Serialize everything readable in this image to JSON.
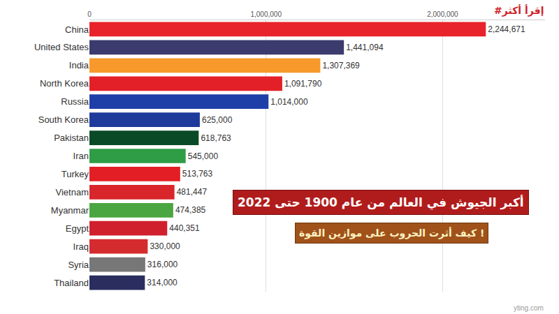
{
  "chart_data": {
    "type": "bar",
    "orientation": "horizontal",
    "title": "أكبر الجيوش في العالم من عام 1900 حتى 2022",
    "subtitle": "كيف أثرت الحروب على موازين القوة !",
    "annotations": [
      "#إقرأ أكثر",
      "yting.com"
    ],
    "categories": [
      "China",
      "United States",
      "India",
      "North Korea",
      "Russia",
      "South Korea",
      "Pakistan",
      "Iran",
      "Turkey",
      "Vietnam",
      "Myanmar",
      "Egypt",
      "Iraq",
      "Syria",
      "Thailand"
    ],
    "values": [
      2244671,
      1441094,
      1307369,
      1091790,
      1014000,
      625000,
      618763,
      545000,
      513763,
      481447,
      474385,
      440351,
      330000,
      316000,
      314000
    ],
    "value_labels": [
      "2,244,671",
      "1,441,094",
      "1,307,369",
      "1,091,790",
      "1,014,000",
      "625,000",
      "618,763",
      "545,000",
      "513,763",
      "481,447",
      "474,385",
      "440,351",
      "330,000",
      "316,000",
      "314,000"
    ],
    "colors": [
      "#e8232b",
      "#3c3b6e",
      "#f79a2b",
      "#e32028",
      "#1f3fa8",
      "#1e3a9a",
      "#0b4a27",
      "#2e9d46",
      "#e31e24",
      "#d9262a",
      "#4aa640",
      "#d0202e",
      "#d42b2e",
      "#777777",
      "#2a2d5e"
    ],
    "xlim": [
      0,
      2580000
    ],
    "xticks": [
      0,
      {
        "value": 1000000,
        "label": "1,000,000"
      },
      {
        "value": 2000000,
        "label": "2,000,000"
      }
    ],
    "grid": true,
    "data_labels": true,
    "tick_labels": true
  }
}
